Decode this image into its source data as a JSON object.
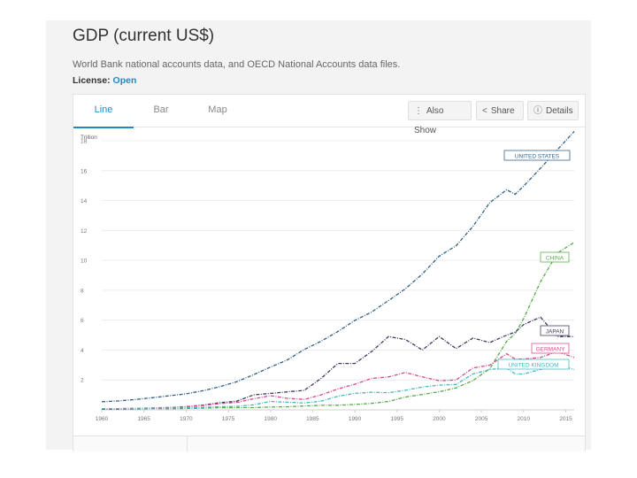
{
  "header": {
    "title": "GDP (current US$)",
    "subtitle": "World Bank national accounts data, and OECD National Accounts data files.",
    "license_label": "License:",
    "license_value": "Open"
  },
  "tabs": [
    {
      "label": "Line",
      "active": true
    },
    {
      "label": "Bar",
      "active": false
    },
    {
      "label": "Map",
      "active": false
    }
  ],
  "toolbar": {
    "also_show": "Also Show",
    "share": "Share",
    "details": "Details"
  },
  "colors": {
    "accent": "#1f8ac5",
    "united_states": "#2f5f8a",
    "china": "#59a84b",
    "japan": "#3b3b5c",
    "germany": "#d64b8a",
    "united_kingdom": "#43b8c4"
  },
  "chart_data": {
    "type": "line",
    "title": "",
    "xlabel": "",
    "ylabel": "Trillion",
    "xlim": [
      1960,
      2016
    ],
    "ylim": [
      0,
      18
    ],
    "y_ticks": [
      0,
      2,
      4,
      6,
      8,
      10,
      12,
      14,
      16,
      18
    ],
    "y_tick_labels": [
      "",
      "2",
      "4",
      "6",
      "8",
      "10",
      "12",
      "14",
      "16",
      "18"
    ],
    "x_ticks": [
      1960,
      1965,
      1970,
      1975,
      1980,
      1985,
      1990,
      1995,
      2000,
      2005,
      2010,
      2015
    ],
    "x_tick_labels": [
      "1960",
      "1965",
      "1970",
      "1975",
      "1980",
      "1985",
      "1990",
      "1995",
      "2000",
      "2005",
      "2010",
      "2015"
    ],
    "grid": true,
    "legend": "labels at line ends",
    "x": [
      1960,
      1962,
      1964,
      1966,
      1968,
      1970,
      1972,
      1974,
      1976,
      1978,
      1980,
      1982,
      1984,
      1986,
      1988,
      1990,
      1992,
      1994,
      1996,
      1998,
      2000,
      2002,
      2004,
      2006,
      2008,
      2009,
      2010,
      2012,
      2014,
      2016
    ],
    "series": [
      {
        "name": "UNITED STATES",
        "color": "#2f5f8a",
        "values": [
          0.54,
          0.6,
          0.69,
          0.81,
          0.94,
          1.07,
          1.28,
          1.55,
          1.88,
          2.35,
          2.86,
          3.34,
          4.04,
          4.59,
          5.24,
          5.98,
          6.54,
          7.31,
          8.1,
          9.09,
          10.28,
          10.98,
          12.27,
          13.86,
          14.72,
          14.42,
          14.96,
          16.16,
          17.39,
          18.62
        ]
      },
      {
        "name": "CHINA",
        "color": "#59a84b",
        "values": [
          0.06,
          0.05,
          0.06,
          0.08,
          0.07,
          0.09,
          0.11,
          0.14,
          0.15,
          0.15,
          0.19,
          0.2,
          0.26,
          0.3,
          0.31,
          0.36,
          0.43,
          0.56,
          0.86,
          1.03,
          1.21,
          1.47,
          1.96,
          2.75,
          4.59,
          5.1,
          6.1,
          8.56,
          10.48,
          11.2
        ]
      },
      {
        "name": "JAPAN",
        "color": "#3b3b5c",
        "values": [
          0.04,
          0.06,
          0.08,
          0.1,
          0.15,
          0.21,
          0.32,
          0.48,
          0.58,
          1.0,
          1.1,
          1.2,
          1.3,
          2.1,
          3.1,
          3.1,
          3.9,
          4.9,
          4.7,
          4.0,
          4.9,
          4.1,
          4.8,
          4.5,
          5.0,
          5.2,
          5.7,
          6.2,
          4.9,
          4.9
        ]
      },
      {
        "name": "GERMANY",
        "color": "#d64b8a",
        "values": [
          0.07,
          0.08,
          0.1,
          0.13,
          0.16,
          0.21,
          0.29,
          0.42,
          0.5,
          0.74,
          0.95,
          0.77,
          0.7,
          1.0,
          1.4,
          1.71,
          2.1,
          2.2,
          2.5,
          2.2,
          1.95,
          2.0,
          2.8,
          2.99,
          3.75,
          3.4,
          3.4,
          3.5,
          3.9,
          3.5
        ]
      },
      {
        "name": "UNITED KINGDOM",
        "color": "#43b8c4",
        "values": [
          0.07,
          0.08,
          0.1,
          0.11,
          0.11,
          0.13,
          0.17,
          0.21,
          0.23,
          0.34,
          0.56,
          0.51,
          0.46,
          0.58,
          0.91,
          1.1,
          1.18,
          1.14,
          1.31,
          1.53,
          1.65,
          1.7,
          2.4,
          2.7,
          2.8,
          2.4,
          2.4,
          2.7,
          3.0,
          2.7
        ]
      }
    ]
  }
}
